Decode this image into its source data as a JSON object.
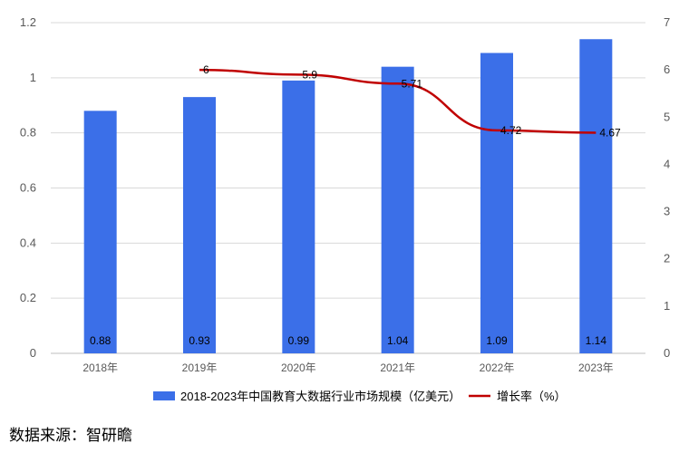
{
  "chart_data": {
    "type": "bar",
    "categories": [
      "2018年",
      "2019年",
      "2020年",
      "2021年",
      "2022年",
      "2023年"
    ],
    "series": [
      {
        "name": "2018-2023年中国教育大数据行业市场规模（亿美元）",
        "kind": "bar",
        "axis": "left",
        "values": [
          0.88,
          0.93,
          0.99,
          1.04,
          1.09,
          1.14
        ],
        "labels": [
          "0.88",
          "0.93",
          "0.99",
          "1.04",
          "1.09",
          "1.14"
        ],
        "color": "#3B6FE8"
      },
      {
        "name": "增长率（%）",
        "kind": "line",
        "axis": "right",
        "values": [
          null,
          6,
          5.9,
          5.71,
          4.72,
          4.67
        ],
        "labels": [
          "",
          "6",
          "5.9",
          "5.71",
          "4.72",
          "4.67"
        ],
        "color": "#C00000",
        "smooth": true
      }
    ],
    "y_left": {
      "min": 0,
      "max": 1.2,
      "ticks": [
        "0",
        "0.2",
        "0.4",
        "0.6",
        "0.8",
        "1",
        "1.2"
      ]
    },
    "y_right": {
      "min": 0,
      "max": 7,
      "ticks": [
        "0",
        "1",
        "2",
        "3",
        "4",
        "5",
        "6",
        "7"
      ]
    },
    "grid": true,
    "legend_position": "bottom"
  },
  "source_text": "数据来源：智研瞻"
}
